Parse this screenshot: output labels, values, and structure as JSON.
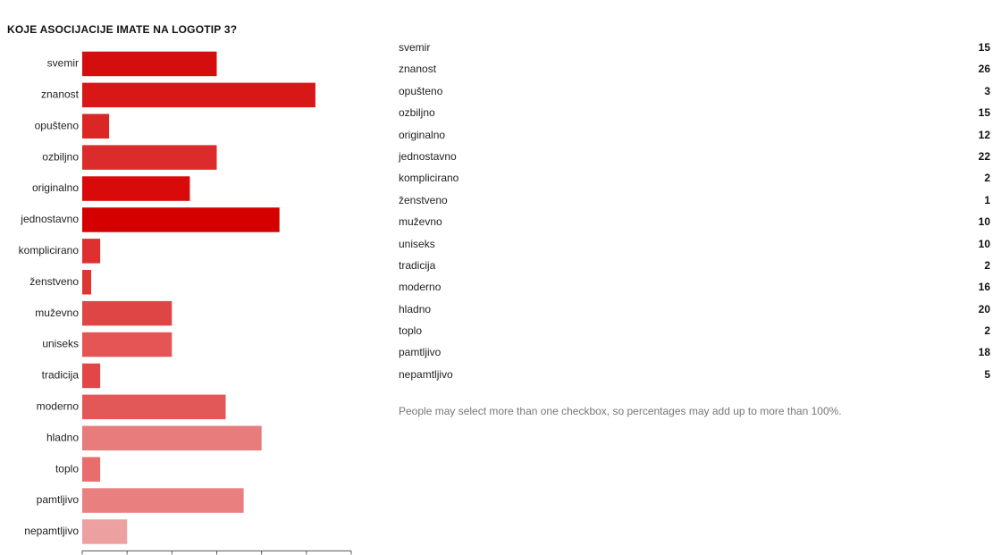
{
  "question": {
    "title": "KOJE ASOCIJACIJE IMATE NA LOGOTIP 3?"
  },
  "chart_data": {
    "type": "bar",
    "orientation": "horizontal",
    "title": "KOJE ASOCIJACIJE IMATE NA LOGOTIP 3?",
    "categories": [
      "svemir",
      "znanost",
      "opušteno",
      "ozbiljno",
      "originalno",
      "jednostavno",
      "komplicirano",
      "ženstveno",
      "muževno",
      "uniseks",
      "tradicija",
      "moderno",
      "hladno",
      "toplo",
      "pamtljivo",
      "nepamtljivo"
    ],
    "values": [
      15,
      26,
      3,
      15,
      12,
      22,
      2,
      1,
      10,
      10,
      2,
      16,
      20,
      2,
      18,
      5
    ],
    "xlim": [
      0,
      30
    ],
    "xticks": [
      "0",
      "5",
      "10",
      "15",
      "20",
      "25",
      "30"
    ],
    "xlabel": "",
    "ylabel": "",
    "grid": false,
    "legend": "none",
    "colors": [
      "#d40e0e",
      "#d81717",
      "#db2626",
      "#dc2b2b",
      "#d80a0a",
      "#d40000",
      "#de3030",
      "#df3535",
      "#e04545",
      "#e55555",
      "#e24646",
      "#e25858",
      "#e87b7b",
      "#ea6d6d",
      "#ea7f7f",
      "#eda0a0"
    ]
  },
  "summary": {
    "rows": [
      {
        "label": "svemir",
        "count": "15"
      },
      {
        "label": "znanost",
        "count": "26"
      },
      {
        "label": "opušteno",
        "count": "3"
      },
      {
        "label": "ozbiljno",
        "count": "15"
      },
      {
        "label": "originalno",
        "count": "12"
      },
      {
        "label": "jednostavno",
        "count": "22"
      },
      {
        "label": "komplicirano",
        "count": "2"
      },
      {
        "label": "ženstveno",
        "count": "1"
      },
      {
        "label": "muževno",
        "count": "10"
      },
      {
        "label": "uniseks",
        "count": "10"
      },
      {
        "label": "tradicija",
        "count": "2"
      },
      {
        "label": "moderno",
        "count": "16"
      },
      {
        "label": "hladno",
        "count": "20"
      },
      {
        "label": "toplo",
        "count": "2"
      },
      {
        "label": "pamtljivo",
        "count": "18"
      },
      {
        "label": "nepamtljivo",
        "count": "5"
      }
    ],
    "footnote": "People may select more than one checkbox, so percentages may add up to more than 100%."
  }
}
